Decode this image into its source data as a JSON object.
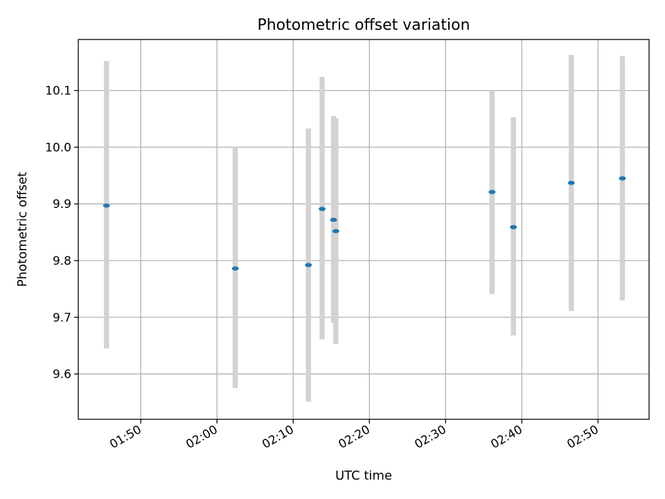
{
  "chart_data": {
    "type": "scatter",
    "title": "Photometric offset variation",
    "xlabel": "UTC time",
    "ylabel": "Photometric offset",
    "x_format": "time HH:MM (UTC)",
    "xlim": [
      "01:41:48",
      "02:56:42"
    ],
    "ylim": [
      9.52,
      10.19
    ],
    "x_ticks": [
      "01:50",
      "02:00",
      "02:10",
      "02:20",
      "02:30",
      "02:40",
      "02:50"
    ],
    "y_ticks": [
      9.6,
      9.7,
      9.8,
      9.9,
      10.0,
      10.1
    ],
    "grid": true,
    "colors": {
      "points": "#1f77b4",
      "error_bars": "#d3d3d3"
    },
    "series": [
      {
        "points": [
          {
            "x": "01:45:30",
            "y": 9.897,
            "yerr_low": 9.645,
            "yerr_high": 10.152
          },
          {
            "x": "02:02:24",
            "y": 9.786,
            "yerr_low": 9.575,
            "yerr_high": 10.0
          },
          {
            "x": "02:12:00",
            "y": 9.792,
            "yerr_low": 9.551,
            "yerr_high": 10.033
          },
          {
            "x": "02:13:48",
            "y": 9.891,
            "yerr_low": 9.661,
            "yerr_high": 10.124
          },
          {
            "x": "02:15:18",
            "y": 9.872,
            "yerr_low": 9.69,
            "yerr_high": 10.055
          },
          {
            "x": "02:15:36",
            "y": 9.852,
            "yerr_low": 9.653,
            "yerr_high": 10.051
          },
          {
            "x": "02:36:06",
            "y": 9.921,
            "yerr_low": 9.741,
            "yerr_high": 10.1
          },
          {
            "x": "02:38:54",
            "y": 9.859,
            "yerr_low": 9.668,
            "yerr_high": 10.053
          },
          {
            "x": "02:46:30",
            "y": 9.937,
            "yerr_low": 9.711,
            "yerr_high": 10.163
          },
          {
            "x": "02:53:12",
            "y": 9.945,
            "yerr_low": 9.73,
            "yerr_high": 10.161
          }
        ]
      }
    ]
  }
}
